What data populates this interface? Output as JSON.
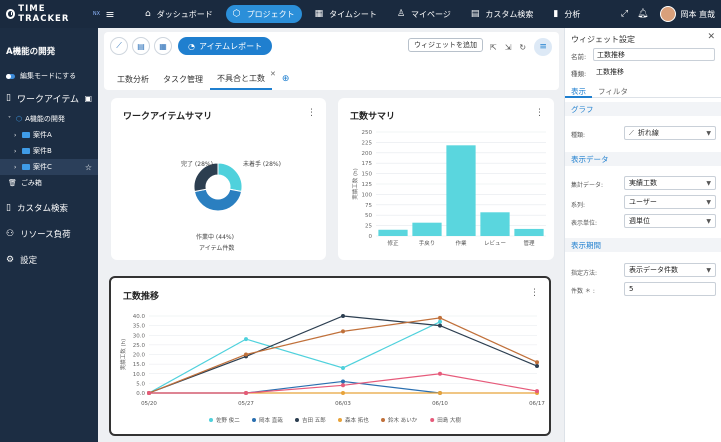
{
  "brand": {
    "text": "TIME TRACKER",
    "suffix": "NX"
  },
  "nav": [
    {
      "icon": "⌂",
      "label": "ダッシュボード"
    },
    {
      "icon": "⬡",
      "label": "プロジェクト",
      "active": true
    },
    {
      "icon": "▦",
      "label": "タイムシート"
    },
    {
      "icon": "♙",
      "label": "マイページ"
    },
    {
      "icon": "▤",
      "label": "カスタム検索"
    },
    {
      "icon": "▮",
      "label": "分析"
    }
  ],
  "user": {
    "name": "岡本 直哉"
  },
  "sidebar": {
    "project": "A機能の開発",
    "edit_mode": "編集モードにする",
    "work_items": "ワークアイテム",
    "tree": {
      "root": "A機能の開発",
      "items": [
        "案件A",
        "案件B",
        "案件C"
      ],
      "trash": "ごみ箱"
    },
    "items": [
      "カスタム検索",
      "リソース負荷",
      "設定"
    ]
  },
  "toolbar": {
    "report_label": "アイテムレポート",
    "add_widget": "ウィジェットを追加"
  },
  "tabs": [
    {
      "label": "工数分析"
    },
    {
      "label": "タスク管理"
    },
    {
      "label": "不具合と工数",
      "active": true
    }
  ],
  "widgets": {
    "summary": {
      "title": "ワークアイテムサマリ",
      "center_label": "アイテム件数",
      "labels": {
        "done": "完了 (28%)",
        "todo": "未着手 (28%)",
        "wip": "作業中 (44%)"
      }
    },
    "effort": {
      "title": "工数サマリ"
    },
    "trend": {
      "title": "工数推移"
    }
  },
  "chart_data": [
    {
      "type": "pie",
      "labels": [
        "未着手",
        "作業中",
        "完了"
      ],
      "values": [
        28,
        44,
        28
      ],
      "colors": [
        "#4fd1dc",
        "#2a7fc0",
        "#2c3e50"
      ]
    },
    {
      "type": "bar",
      "categories": [
        "修正",
        "手戻り",
        "作業",
        "レビュー",
        "管理"
      ],
      "values": [
        15,
        32,
        218,
        57,
        17
      ],
      "ylabel": "実績工数 (h)",
      "ylim": [
        0,
        250
      ],
      "yticks": [
        0,
        25,
        50,
        75,
        100,
        125,
        150,
        175,
        200,
        225,
        250
      ],
      "color": "#5ad6de"
    },
    {
      "type": "line",
      "x": [
        "05/20",
        "05/27",
        "06/03",
        "06/10",
        "06/17"
      ],
      "ylabel": "実績工数 (h)",
      "ylim": [
        0,
        40
      ],
      "yticks": [
        0,
        5,
        10,
        15,
        20,
        25,
        30,
        35,
        40
      ],
      "series": [
        {
          "name": "佐野 俊二",
          "color": "#4fd1dc",
          "values": [
            0,
            28,
            13,
            37,
            null
          ]
        },
        {
          "name": "岡本 直哉",
          "color": "#2a6fb0",
          "values": [
            0,
            0,
            6,
            0,
            null
          ]
        },
        {
          "name": "吉田 五郎",
          "color": "#2c3e50",
          "values": [
            0,
            19,
            40,
            35,
            14
          ]
        },
        {
          "name": "森本 拓也",
          "color": "#e8a33a",
          "values": [
            0,
            0,
            0,
            0,
            0
          ]
        },
        {
          "name": "鈴木 あいか",
          "color": "#c0703a",
          "values": [
            0,
            20,
            32,
            39,
            16
          ]
        },
        {
          "name": "田島 大樹",
          "color": "#e65a7a",
          "values": [
            0,
            0,
            4,
            10,
            1
          ]
        }
      ]
    }
  ],
  "panel": {
    "title": "ウィジェット設定",
    "name_label": "名前:",
    "name_value": "工数推移",
    "type_label": "種類:",
    "type_value": "工数推移",
    "tabs": [
      "表示",
      "フィルタ"
    ],
    "sections": {
      "graph": "グラフ",
      "data": "表示データ",
      "period": "表示期間"
    },
    "fields": {
      "kind_label": "種類:",
      "kind_value": "折れ線",
      "agg_label": "集計データ:",
      "agg_value": "実績工数",
      "series_label": "系列:",
      "series_value": "ユーザー",
      "unit_label": "表示単位:",
      "unit_value": "週単位",
      "method_label": "指定方法:",
      "method_value": "表示データ件数",
      "count_label": "件数 ＊ :",
      "count_value": "5"
    }
  }
}
